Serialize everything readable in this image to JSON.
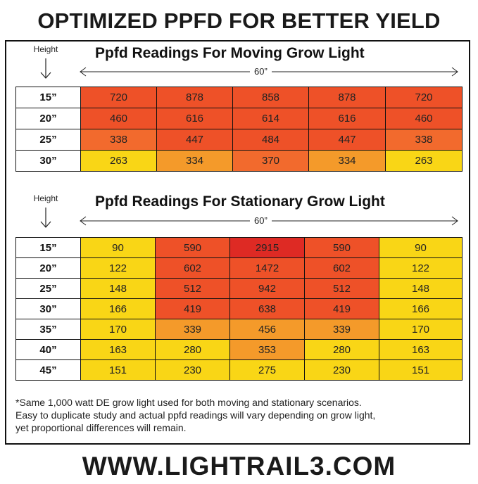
{
  "title": "OPTIMIZED PPFD FOR BETTER YIELD",
  "colors": {
    "yellow": "#f9d616",
    "orange_light": "#f49a2a",
    "orange": "#f26a2d",
    "red_orange": "#ee5128",
    "red": "#de2a24"
  },
  "moving": {
    "height_label": "Height",
    "title": "Ppfd Readings For Moving Grow Light",
    "span_label": "60”",
    "rows": [
      {
        "height": "15”",
        "values": [
          "720",
          "878",
          "858",
          "878",
          "720"
        ],
        "levels": [
          "red_orange",
          "red_orange",
          "red_orange",
          "red_orange",
          "red_orange"
        ]
      },
      {
        "height": "20”",
        "values": [
          "460",
          "616",
          "614",
          "616",
          "460"
        ],
        "levels": [
          "red_orange",
          "red_orange",
          "red_orange",
          "red_orange",
          "red_orange"
        ]
      },
      {
        "height": "25”",
        "values": [
          "338",
          "447",
          "484",
          "447",
          "338"
        ],
        "levels": [
          "orange",
          "red_orange",
          "red_orange",
          "red_orange",
          "orange"
        ]
      },
      {
        "height": "30”",
        "values": [
          "263",
          "334",
          "370",
          "334",
          "263"
        ],
        "levels": [
          "yellow",
          "orange_light",
          "orange",
          "orange_light",
          "yellow"
        ]
      }
    ]
  },
  "stationary": {
    "height_label": "Height",
    "title": "Ppfd Readings For Stationary Grow Light",
    "span_label": "60”",
    "rows": [
      {
        "height": "15”",
        "values": [
          "90",
          "590",
          "2915",
          "590",
          "90"
        ],
        "levels": [
          "yellow",
          "red_orange",
          "red",
          "red_orange",
          "yellow"
        ]
      },
      {
        "height": "20”",
        "values": [
          "122",
          "602",
          "1472",
          "602",
          "122"
        ],
        "levels": [
          "yellow",
          "red_orange",
          "red_orange",
          "red_orange",
          "yellow"
        ]
      },
      {
        "height": "25”",
        "values": [
          "148",
          "512",
          "942",
          "512",
          "148"
        ],
        "levels": [
          "yellow",
          "red_orange",
          "red_orange",
          "red_orange",
          "yellow"
        ]
      },
      {
        "height": "30”",
        "values": [
          "166",
          "419",
          "638",
          "419",
          "166"
        ],
        "levels": [
          "yellow",
          "red_orange",
          "red_orange",
          "red_orange",
          "yellow"
        ]
      },
      {
        "height": "35”",
        "values": [
          "170",
          "339",
          "456",
          "339",
          "170"
        ],
        "levels": [
          "yellow",
          "orange_light",
          "orange_light",
          "orange_light",
          "yellow"
        ]
      },
      {
        "height": "40”",
        "values": [
          "163",
          "280",
          "353",
          "280",
          "163"
        ],
        "levels": [
          "yellow",
          "yellow",
          "orange_light",
          "yellow",
          "yellow"
        ]
      },
      {
        "height": "45”",
        "values": [
          "151",
          "230",
          "275",
          "230",
          "151"
        ],
        "levels": [
          "yellow",
          "yellow",
          "yellow",
          "yellow",
          "yellow"
        ]
      }
    ]
  },
  "footnote": [
    "*Same 1,000 watt DE grow light used for both moving and stationary scenarios.",
    "Easy to duplicate study and actual ppfd readings will vary depending on grow light,",
    "yet proportional differences will remain."
  ],
  "website": "WWW.LIGHTRAIL3.COM"
}
